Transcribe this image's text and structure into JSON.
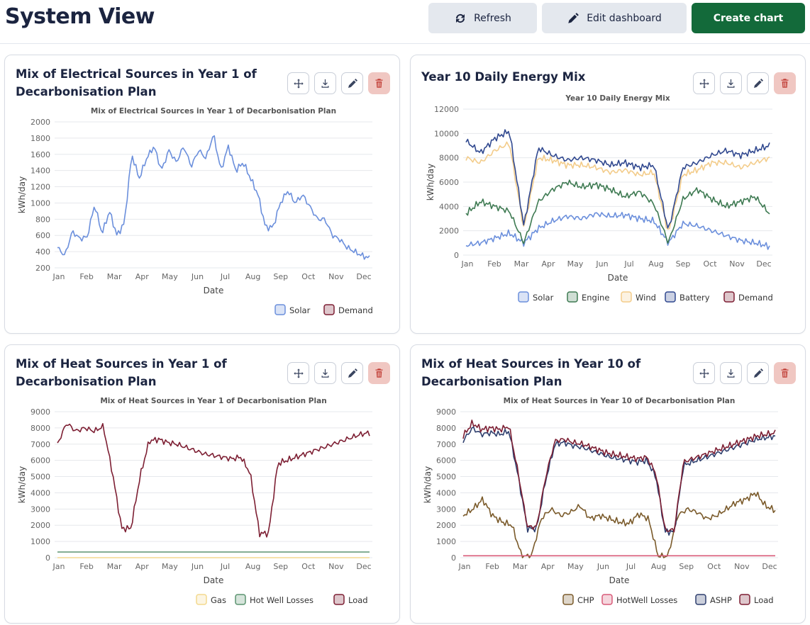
{
  "page": {
    "title": "System View",
    "buttons": {
      "refresh": "Refresh",
      "edit": "Edit dashboard",
      "create": "Create chart"
    }
  },
  "colors": {
    "solar": "#6b8fdc",
    "engine": "#3e7a52",
    "wind": "#f3cc8a",
    "battery": "#30488f",
    "demand": "#7d1f33",
    "gas": "#f3d98e",
    "hotwell": "#5b9470",
    "load": "#7d1f33",
    "chp": "#7a5a2a",
    "hotwell10": "#d85a78",
    "ashp": "#2e3f6e",
    "green": "#136a3a"
  },
  "cards": [
    {
      "title": "Mix of Electrical Sources in Year 1 of Decarbonisation Plan"
    },
    {
      "title": "Year 10 Daily Energy Mix"
    },
    {
      "title": "Mix of Heat Sources in Year 1 of Decarbonisation Plan"
    },
    {
      "title": "Mix of Heat Sources in Year 10 of Decarbonisation Plan"
    }
  ],
  "chart_data": [
    {
      "type": "line",
      "title": "Mix of Electrical Sources in Year 1 of Decarbonisation Plan",
      "xlabel": "Date",
      "ylabel": "kWh/day",
      "ylim": [
        200,
        2000
      ],
      "yticks": [
        200,
        400,
        600,
        800,
        1000,
        1200,
        1400,
        1600,
        1800,
        2000
      ],
      "xticks": [
        "Jan",
        "Feb",
        "Mar",
        "Apr",
        "May",
        "Jun",
        "Jul",
        "Aug",
        "Sep",
        "Oct",
        "Nov",
        "Dec"
      ],
      "legend": [
        "Solar",
        "Demand"
      ],
      "series": [
        {
          "name": "Solar",
          "color": "#6b8fdc",
          "values": [
            450,
            350,
            650,
            560,
            580,
            980,
            620,
            900,
            600,
            750,
            1600,
            1300,
            1550,
            1700,
            1400,
            1650,
            1500,
            1700,
            1450,
            1650,
            1550,
            1850,
            1400,
            1700,
            1400,
            1500,
            1300,
            1100,
            700,
            700,
            1000,
            1150,
            1000,
            1100,
            950,
            800,
            800,
            600,
            550,
            450,
            400,
            350,
            320
          ]
        },
        {
          "name": "Demand",
          "color": "#7d1f33",
          "values": []
        }
      ]
    },
    {
      "type": "line",
      "title": "Year 10 Daily Energy Mix",
      "xlabel": "Date",
      "ylabel": "kWh/day",
      "ylim": [
        0,
        12000
      ],
      "yticks": [
        0,
        2000,
        4000,
        6000,
        8000,
        10000,
        12000
      ],
      "xticks": [
        "Jan",
        "Feb",
        "Mar",
        "Apr",
        "May",
        "Jun",
        "Jul",
        "Aug",
        "Sep",
        "Oct",
        "Nov",
        "Dec"
      ],
      "legend": [
        "Solar",
        "Engine",
        "Wind",
        "Battery",
        "Demand"
      ],
      "series": [
        {
          "name": "Solar",
          "color": "#6b8fdc",
          "values": [
            800,
            1000,
            1400,
            1800,
            1000,
            2200,
            2800,
            3200,
            3000,
            3400,
            3200,
            3300,
            3000,
            2800,
            1000,
            2600,
            2400,
            2000,
            1600,
            1200,
            1000,
            700
          ]
        },
        {
          "name": "Engine",
          "color": "#3e7a52",
          "values": [
            3400,
            4400,
            4000,
            3600,
            1000,
            4400,
            5400,
            6000,
            5600,
            5800,
            5400,
            4800,
            5200,
            4200,
            1000,
            4600,
            5400,
            4600,
            4000,
            4400,
            4800,
            3400
          ]
        },
        {
          "name": "Wind",
          "color": "#f3cc8a",
          "values": [
            8000,
            7600,
            8600,
            9200,
            2200,
            8000,
            7800,
            7400,
            7400,
            7200,
            6800,
            7000,
            6600,
            6800,
            1800,
            6600,
            7000,
            7600,
            7600,
            7200,
            7600,
            8000
          ]
        },
        {
          "name": "Battery",
          "color": "#30488f",
          "values": [
            9400,
            8400,
            9600,
            10200,
            2400,
            8800,
            8200,
            7800,
            8000,
            7800,
            7400,
            7600,
            7200,
            7400,
            2000,
            7200,
            7600,
            8200,
            8600,
            8200,
            8600,
            9000
          ]
        },
        {
          "name": "Demand",
          "color": "#7d1f33",
          "values": []
        }
      ]
    },
    {
      "type": "line",
      "title": "Mix of Heat Sources in Year 1 of Decarbonisation Plan",
      "xlabel": "Date",
      "ylabel": "kWh/day",
      "ylim": [
        0,
        9000
      ],
      "yticks": [
        0,
        1000,
        2000,
        3000,
        4000,
        5000,
        6000,
        7000,
        8000,
        9000
      ],
      "xticks": [
        "Jan",
        "Feb",
        "Mar",
        "Apr",
        "May",
        "Jun",
        "Jul",
        "Aug",
        "Sep",
        "Oct",
        "Nov",
        "Dec"
      ],
      "legend": [
        "Gas",
        "Hot Well Losses",
        "Load"
      ],
      "series": [
        {
          "name": "Gas",
          "color": "#f3d98e",
          "values": [
            0,
            0
          ]
        },
        {
          "name": "Hot Well Losses",
          "color": "#5b9470",
          "values": [
            350,
            350
          ]
        },
        {
          "name": "Load",
          "color": "#7d1f33",
          "values": [
            7000,
            8300,
            7800,
            8000,
            7800,
            8100,
            5200,
            1800,
            1800,
            5000,
            7200,
            7300,
            7100,
            7000,
            6800,
            6600,
            6400,
            6300,
            6200,
            6100,
            6200,
            5200,
            1500,
            1500,
            5800,
            6000,
            6200,
            6400,
            6600,
            6800,
            7000,
            7200,
            7400,
            7600,
            7700
          ]
        }
      ]
    },
    {
      "type": "line",
      "title": "Mix of Heat Sources in Year 10 of Decarbonisation Plan",
      "xlabel": "Date",
      "ylabel": "kWh/day",
      "ylim": [
        0,
        9000
      ],
      "yticks": [
        0,
        1000,
        2000,
        3000,
        4000,
        5000,
        6000,
        7000,
        8000,
        9000
      ],
      "xticks": [
        "Jan",
        "Feb",
        "Mar",
        "Apr",
        "May",
        "Jun",
        "Jul",
        "Aug",
        "Sep",
        "Oct",
        "Nov",
        "Dec"
      ],
      "legend": [
        "CHP",
        "HotWell Losses",
        "ASHP",
        "Load"
      ],
      "series": [
        {
          "name": "CHP",
          "color": "#7a5a2a",
          "values": [
            2600,
            3000,
            3600,
            2600,
            2200,
            2000,
            100,
            100,
            2400,
            3000,
            2600,
            2800,
            3200,
            2400,
            2600,
            2400,
            2200,
            2100,
            2700,
            2400,
            100,
            100,
            2600,
            3000,
            2800,
            2400,
            2600,
            3000,
            3400,
            3600,
            4000,
            3200,
            2900
          ]
        },
        {
          "name": "HotWell Losses",
          "color": "#d85a78",
          "values": [
            120,
            120
          ]
        },
        {
          "name": "ASHP",
          "color": "#2e3f6e",
          "values": [
            7200,
            8000,
            7600,
            7700,
            7600,
            7800,
            5000,
            1800,
            1800,
            4800,
            7000,
            7100,
            6900,
            6800,
            6600,
            6400,
            6200,
            6100,
            6000,
            5900,
            6000,
            5000,
            1600,
            1600,
            5700,
            5900,
            6100,
            6300,
            6500,
            6700,
            6900,
            7100,
            7300,
            7400,
            7500
          ]
        },
        {
          "name": "Load",
          "color": "#7d1f33",
          "values": [
            7500,
            8300,
            7900,
            8000,
            7900,
            8100,
            5200,
            1900,
            1900,
            5000,
            7200,
            7300,
            7100,
            7000,
            6800,
            6600,
            6400,
            6300,
            6200,
            6100,
            6200,
            5200,
            1700,
            1700,
            5900,
            6100,
            6300,
            6500,
            6700,
            6900,
            7100,
            7300,
            7500,
            7600,
            7700
          ]
        }
      ]
    }
  ]
}
